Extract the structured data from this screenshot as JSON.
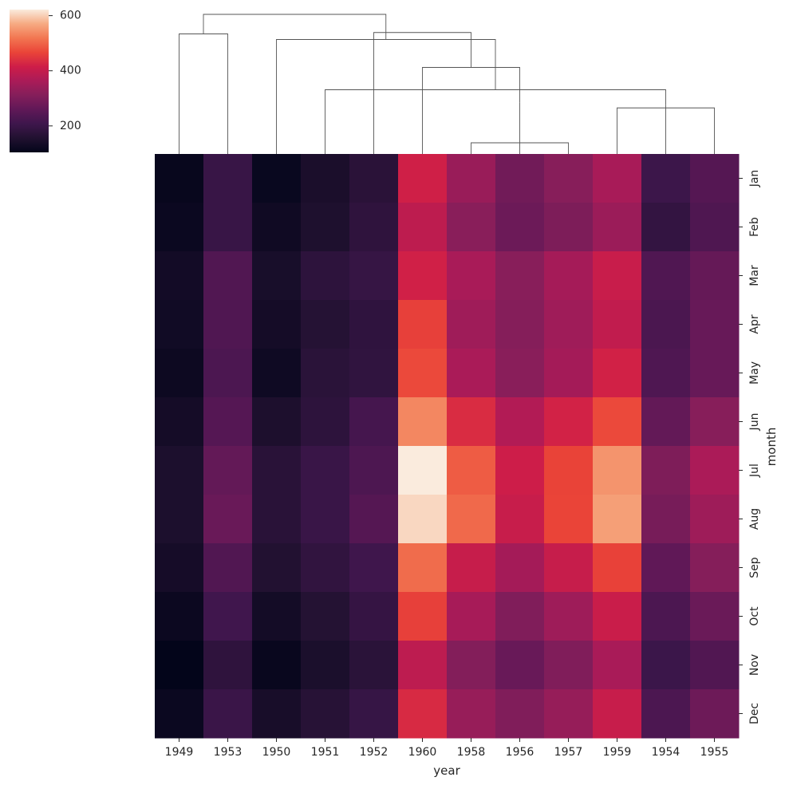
{
  "chart_data": {
    "type": "heatmap",
    "title": "",
    "xlabel": "year",
    "ylabel": "month",
    "x_categories": [
      "1949",
      "1953",
      "1950",
      "1951",
      "1952",
      "1960",
      "1958",
      "1956",
      "1957",
      "1959",
      "1954",
      "1955"
    ],
    "y_categories": [
      "Jan",
      "Feb",
      "Mar",
      "Apr",
      "May",
      "Jun",
      "Jul",
      "Aug",
      "Sep",
      "Oct",
      "Nov",
      "Dec"
    ],
    "values": [
      [
        112,
        196,
        115,
        145,
        171,
        417,
        340,
        284,
        315,
        360,
        204,
        242
      ],
      [
        118,
        196,
        126,
        150,
        180,
        391,
        318,
        277,
        301,
        342,
        188,
        233
      ],
      [
        132,
        236,
        141,
        178,
        193,
        419,
        362,
        317,
        356,
        406,
        235,
        267
      ],
      [
        129,
        235,
        135,
        163,
        181,
        461,
        348,
        313,
        348,
        396,
        227,
        269
      ],
      [
        121,
        229,
        125,
        172,
        183,
        472,
        363,
        318,
        355,
        420,
        234,
        270
      ],
      [
        135,
        243,
        149,
        178,
        218,
        535,
        435,
        374,
        422,
        472,
        264,
        315
      ],
      [
        148,
        264,
        170,
        199,
        230,
        622,
        491,
        413,
        465,
        548,
        302,
        364
      ],
      [
        148,
        272,
        170,
        199,
        242,
        606,
        505,
        405,
        467,
        559,
        293,
        347
      ],
      [
        136,
        237,
        158,
        184,
        209,
        508,
        404,
        355,
        404,
        463,
        259,
        312
      ],
      [
        119,
        211,
        133,
        162,
        191,
        461,
        359,
        306,
        347,
        407,
        229,
        274
      ],
      [
        104,
        180,
        114,
        146,
        172,
        390,
        310,
        271,
        305,
        362,
        203,
        237
      ],
      [
        118,
        201,
        140,
        166,
        194,
        432,
        337,
        306,
        336,
        405,
        229,
        278
      ]
    ],
    "colorbar": {
      "vmin": 104,
      "vmax": 622,
      "ticks": [
        200,
        400,
        600
      ],
      "colormap": "rocket"
    },
    "dendrogram": {
      "leaf_order": [
        "1949",
        "1953",
        "1950",
        "1951",
        "1952",
        "1960",
        "1958",
        "1956",
        "1957",
        "1959",
        "1954",
        "1955"
      ],
      "merges": [
        [
          6,
          8,
          0.08
        ],
        [
          9,
          11,
          0.33
        ],
        [
          10,
          13,
          0.35
        ],
        [
          7,
          12,
          0.37
        ],
        [
          3,
          14,
          0.46
        ],
        [
          5,
          15,
          0.62
        ],
        [
          2,
          16,
          0.82
        ],
        [
          0,
          1,
          0.86
        ],
        [
          4,
          17,
          0.87
        ],
        [
          18,
          19,
          1.0
        ]
      ]
    },
    "colors": {
      "background": "#ffffff",
      "dendrogram_line": "#555555",
      "text": "#262626"
    }
  }
}
